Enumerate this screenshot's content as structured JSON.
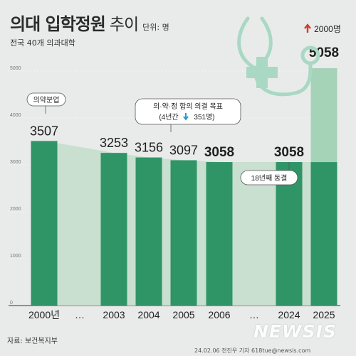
{
  "header": {
    "title": "의대 입학정원",
    "title_suffix": "추이",
    "unit": "단위: 명",
    "subtitle": "전국 40개 의과대학"
  },
  "footer": {
    "source": "자료: 보건복지부",
    "credit": "24.02.06 전진우 기자 618tue@newsis.com",
    "watermark": "NEWSIS"
  },
  "colors": {
    "background": "#e9ebea",
    "bar": "#2f9567",
    "bar_increase": "#a5d3b7",
    "band": "#c9dfcf",
    "icon": "#a9d8c4",
    "up_arrow": "#d63a2c",
    "down_arrow": "#2a9bd5"
  },
  "chart_data": {
    "type": "bar",
    "categories": [
      "2000년",
      "…",
      "2003",
      "2004",
      "2005",
      "2006",
      "…",
      "2024",
      "2025"
    ],
    "values": [
      3507,
      null,
      3253,
      3156,
      3097,
      3058,
      null,
      3058,
      5058
    ],
    "value_labels": [
      "3507",
      "",
      "3253",
      "3156",
      "3097",
      "3058",
      "",
      "3058",
      "5058"
    ],
    "bold_value_labels": [
      "3058",
      "3058",
      "5058"
    ],
    "yticks": [
      0,
      1000,
      2000,
      3000,
      4000,
      5000
    ],
    "ylim": [
      0,
      5300
    ],
    "grid": true,
    "increase": {
      "category": "2025",
      "from": 3058,
      "to": 5058,
      "label": "2000명"
    },
    "annotations": {
      "separation": "의약분업",
      "agreement_title": "의·약·정 합의 의결 목표",
      "agreement_detail_prefix": "(4년간",
      "agreement_detail_value": "351명)",
      "freeze": "18년째 동결"
    }
  }
}
